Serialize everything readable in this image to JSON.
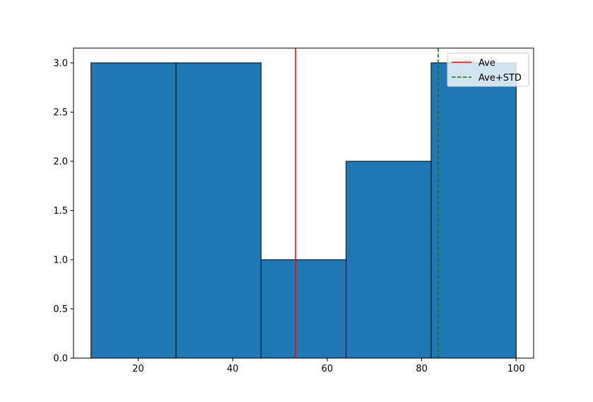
{
  "chart_data": {
    "type": "bar",
    "title": "",
    "xlabel": "",
    "ylabel": "",
    "bins": [
      {
        "x0": 10,
        "x1": 28,
        "count": 3
      },
      {
        "x0": 28,
        "x1": 46,
        "count": 3
      },
      {
        "x0": 46,
        "x1": 64,
        "count": 1
      },
      {
        "x0": 64,
        "x1": 82,
        "count": 2
      },
      {
        "x0": 82,
        "x1": 100,
        "count": 3
      }
    ],
    "xlim": [
      6.3,
      103.7
    ],
    "ylim": [
      0,
      3.15
    ],
    "xticks": [
      20,
      40,
      60,
      80,
      100
    ],
    "xtick_labels": [
      "20",
      "40",
      "60",
      "80",
      "100"
    ],
    "yticks": [
      0,
      0.5,
      1,
      1.5,
      2,
      2.5,
      3
    ],
    "ytick_labels": [
      "0.0",
      "0.5",
      "1.0",
      "1.5",
      "2.0",
      "2.5",
      "3.0"
    ],
    "reference_lines": [
      {
        "name": "Ave",
        "x": 53.3,
        "color": "#ff0000",
        "style": "solid"
      },
      {
        "name": "Ave+STD",
        "x": 83.5,
        "color": "#008000",
        "style": "dashed"
      }
    ],
    "bar_color": "#1f77b4",
    "edge_color": "#000000",
    "grid": false,
    "legend": {
      "position": "top-right",
      "entries": [
        "Ave",
        "Ave+STD"
      ]
    }
  }
}
